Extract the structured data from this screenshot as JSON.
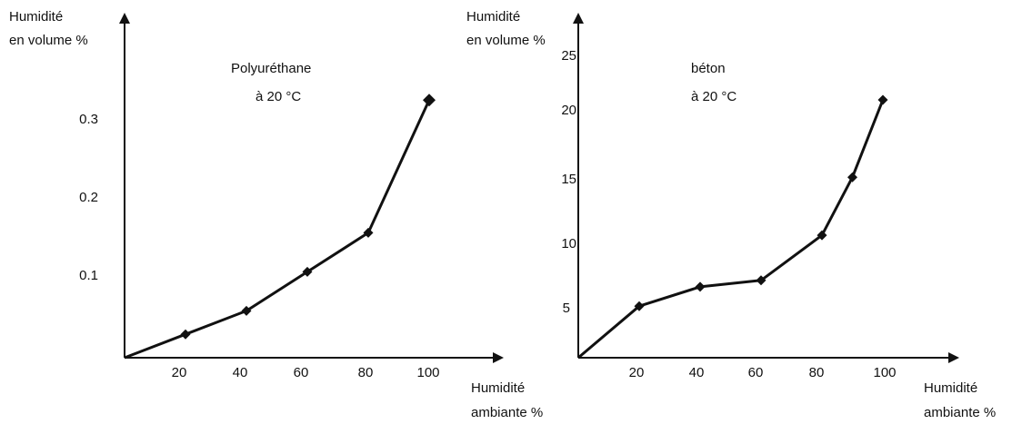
{
  "chart_data": [
    {
      "type": "line",
      "title": "Polyuréthane",
      "subtitle": "à 20 °C",
      "ylabel_line1": "Humidité",
      "ylabel_line2": "en volume %",
      "xlabel_line1": "Humidité",
      "xlabel_line2": "ambiante %",
      "xticks": [
        "20",
        "40",
        "60",
        "80",
        "100"
      ],
      "yticks": [
        "0.1",
        "0.2",
        "0.3"
      ],
      "xlim": [
        0,
        110
      ],
      "ylim": [
        0,
        0.35
      ],
      "series": [
        {
          "x": [
            0,
            20,
            40,
            60,
            80,
            100
          ],
          "y": [
            0,
            0.03,
            0.06,
            0.11,
            0.16,
            0.33
          ]
        }
      ]
    },
    {
      "type": "line",
      "title": "béton",
      "subtitle": "à 20 °C",
      "ylabel_line1": "Humidité",
      "ylabel_line2": "en volume %",
      "xlabel_line1": "Humidité",
      "xlabel_line2": "ambiante %",
      "xticks": [
        "20",
        "40",
        "60",
        "80",
        "100"
      ],
      "yticks": [
        "5",
        "10",
        "15",
        "20",
        "25"
      ],
      "xlim": [
        0,
        110
      ],
      "ylim": [
        0,
        25
      ],
      "series": [
        {
          "x": [
            0,
            20,
            40,
            60,
            80,
            90,
            100
          ],
          "y": [
            0,
            4.0,
            5.5,
            6.0,
            9.5,
            14.0,
            20.0
          ]
        }
      ]
    }
  ]
}
